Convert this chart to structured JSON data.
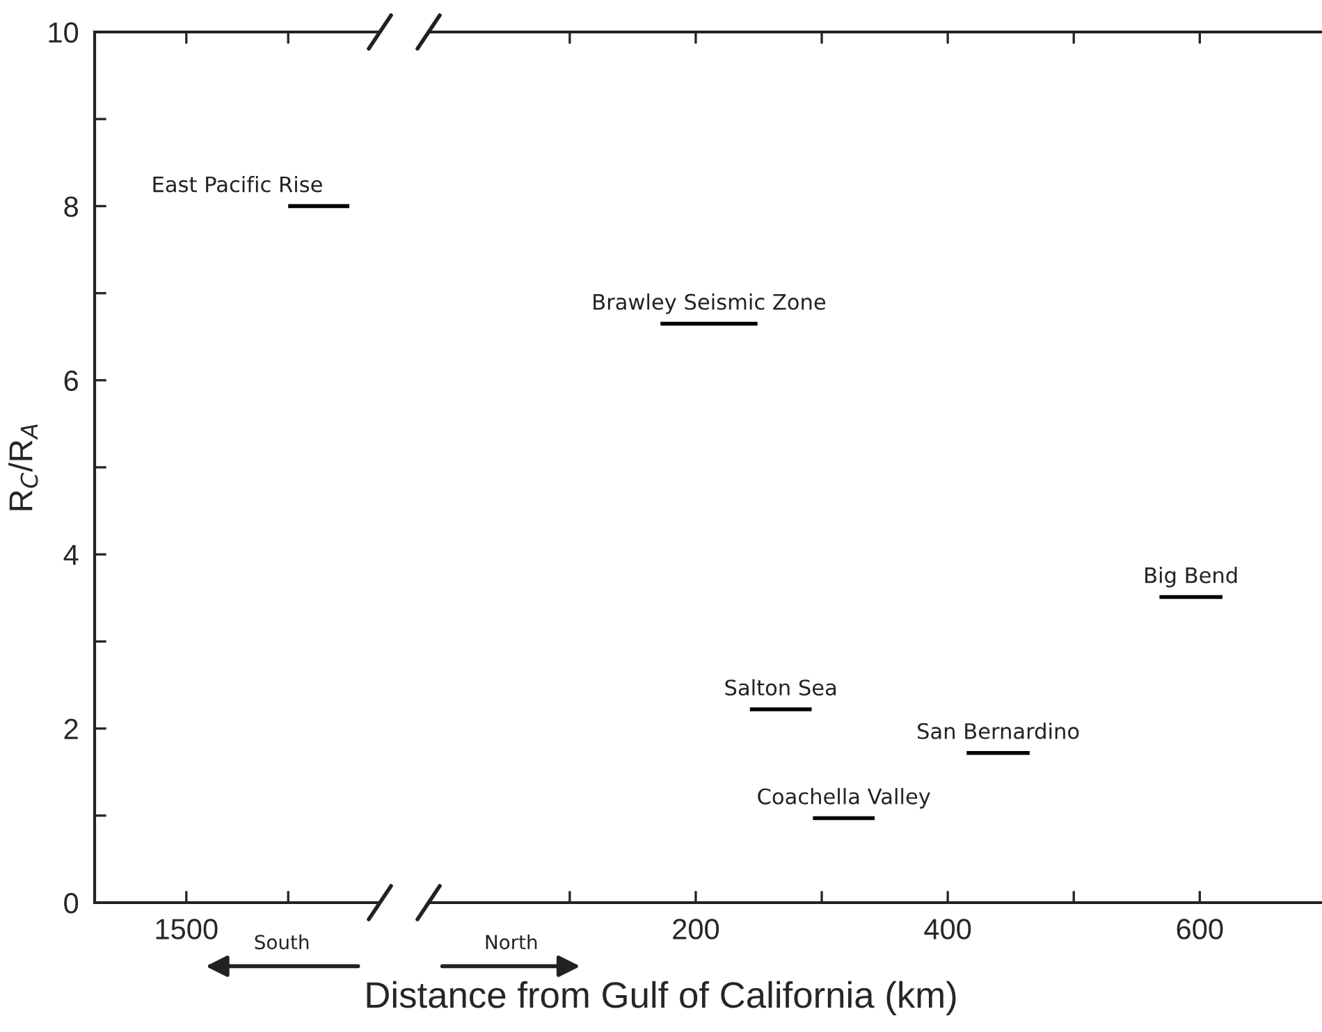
{
  "chart_data": [
    {
      "type": "line",
      "ylabel": "R$_{C}$/R$_{A}$",
      "categories": [
        null,
        null,
        null,
        null,
        "1500",
        null,
        null,
        null,
        null,
        null,
        null,
        null,
        null,
        null
      ],
      "ylim": [
        0,
        10
      ],
      "yticks": [
        0,
        {
          "value": 1,
          "label": null
        },
        2,
        {
          "value": 3,
          "label": null
        },
        4,
        {
          "value": 5,
          "label": null
        },
        6,
        {
          "value": 7,
          "label": null
        },
        8,
        {
          "value": 9,
          "label": null
        },
        10
      ],
      "annotations": [
        "South"
      ],
      "series": [
        {
          "name": "East Pacific Rise",
          "color": "#000000",
          "values": [
            null,
            null,
            null,
            null,
            null,
            null,
            null,
            null,
            null,
            8.0,
            8.0,
            8.0,
            8.0,
            null
          ]
        }
      ]
    },
    {
      "type": "line",
      "xlabel": "Distance from Gulf of California (km)",
      "xlim": [
        -12,
        697
      ],
      "xticks": [
        {
          "value": 100,
          "label": null
        },
        200,
        {
          "value": 300,
          "label": null
        },
        400,
        {
          "value": 500,
          "label": null
        },
        600
      ],
      "ylim": [
        0,
        10
      ],
      "tick_labels": "x",
      "annotations": [
        "North"
      ],
      "series": [
        {
          "name": "Brawley Seismic Zone",
          "color": "#000000",
          "x": [
            172,
            249
          ],
          "values": [
            6.65,
            6.65
          ]
        },
        {
          "name": "Salton Sea",
          "color": "#000000",
          "x": [
            243,
            292
          ],
          "values": [
            2.22,
            2.22
          ]
        },
        {
          "name": "San Bernardino",
          "color": "#000000",
          "x": [
            415,
            465
          ],
          "values": [
            1.72,
            1.72
          ]
        },
        {
          "name": "Coachella Valley",
          "color": "#000000",
          "x": [
            293,
            342
          ],
          "values": [
            0.97,
            0.97
          ]
        },
        {
          "name": "Big Bend",
          "color": "#000000",
          "x": [
            568,
            618
          ],
          "values": [
            3.51,
            3.51
          ]
        }
      ]
    }
  ]
}
